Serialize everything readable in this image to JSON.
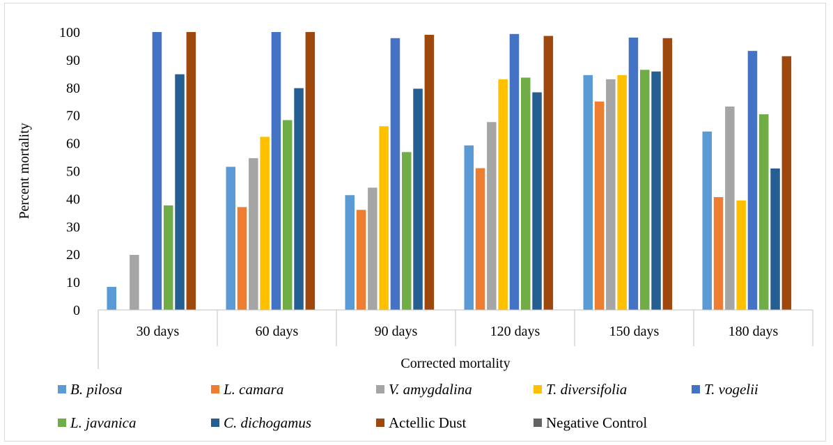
{
  "chart_data": {
    "type": "bar",
    "categories": [
      "30 days",
      "60 days",
      "90 days",
      "120 days",
      "150 days",
      "180 days"
    ],
    "ylabel": "Percent mortality",
    "xlabel": "Corrected mortality",
    "ylim": [
      0,
      100
    ],
    "yticks": [
      0,
      10,
      20,
      30,
      40,
      50,
      60,
      70,
      80,
      90,
      100
    ],
    "grid": false,
    "legend_position": "bottom",
    "series": [
      {
        "name": "B. pilosa",
        "italic": true,
        "color": "#5B9BD5",
        "values": [
          8.3,
          51.5,
          41.3,
          59.2,
          84.5,
          64.2
        ]
      },
      {
        "name": "L. camara",
        "italic": true,
        "color": "#ED7D31",
        "values": [
          0,
          37,
          36,
          51,
          75,
          40.6
        ]
      },
      {
        "name": "V. amygdalina",
        "italic": true,
        "color": "#A5A5A5",
        "values": [
          19.8,
          54.6,
          44,
          67.6,
          83,
          73.2
        ]
      },
      {
        "name": "T. diversifolia",
        "italic": true,
        "color": "#FFC000",
        "values": [
          0,
          62.3,
          66.1,
          83,
          84.5,
          39.4
        ]
      },
      {
        "name": "T. vogelii",
        "italic": true,
        "color": "#4472C4",
        "values": [
          100,
          100,
          97.8,
          99.3,
          98,
          93.2
        ]
      },
      {
        "name": "L. javanica",
        "italic": true,
        "color": "#70AD47",
        "values": [
          37.6,
          68.3,
          56.8,
          83.6,
          86.4,
          70.4
        ]
      },
      {
        "name": "C. dichogamus",
        "italic": true,
        "color": "#255E91",
        "values": [
          84.8,
          79.8,
          79.6,
          78.3,
          85.8,
          50.9
        ]
      },
      {
        "name": "Actellic Dust",
        "italic": false,
        "color": "#9E480E",
        "values": [
          100,
          100,
          99,
          98.6,
          97.8,
          91.3
        ]
      },
      {
        "name": "Negative Control",
        "italic": false,
        "color": "#636363",
        "values": [
          0,
          0,
          0,
          0,
          0,
          0
        ]
      }
    ]
  }
}
